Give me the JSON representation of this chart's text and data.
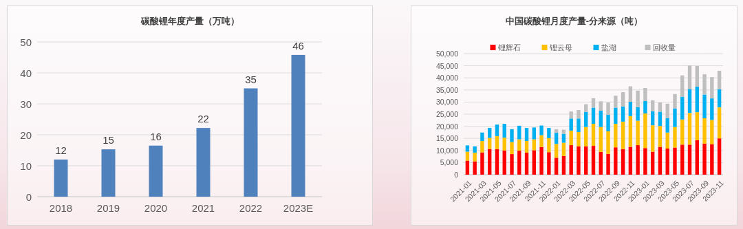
{
  "chart_data": [
    {
      "type": "bar",
      "title": "碳酸锂年度产量（万吨）",
      "categories": [
        "2018",
        "2019",
        "2020",
        "2021",
        "2022",
        "2023E"
      ],
      "values": [
        12,
        15.3,
        16.5,
        22.2,
        35,
        45.8
      ],
      "value_labels": [
        "12",
        "15",
        "16",
        "22",
        "35",
        "46"
      ],
      "color": "#4f81bd",
      "ylim": [
        0,
        50
      ],
      "yticks": [
        0,
        10,
        20,
        30,
        40,
        50
      ],
      "grid": "y"
    },
    {
      "type": "bar",
      "title": "中国碳酸锂月度产量-分来源（吨）",
      "stacked": true,
      "legend": "top",
      "grid": "y",
      "categories": [
        "2021-01",
        null,
        "2021-03",
        null,
        "2021-05",
        null,
        "2021-07",
        null,
        "2021-09",
        null,
        "2021-11",
        null,
        "2022-01",
        null,
        "2022-03",
        null,
        "2022-05",
        null,
        "2022-07",
        null,
        "2022-09",
        null,
        "2022-11",
        null,
        "2023-01",
        null,
        "2023-03",
        null,
        "2023-05",
        null,
        "2023-07",
        null,
        "2023-09",
        null,
        "2023-11"
      ],
      "ylim": [
        0,
        50000
      ],
      "yticks": [
        {
          "value": 0,
          "label": "0"
        },
        {
          "value": 5000,
          "label": "5,000"
        },
        {
          "value": 10000,
          "label": "10,000"
        },
        {
          "value": 15000,
          "label": "15,000"
        },
        {
          "value": 20000,
          "label": "20,000"
        },
        {
          "value": 25000,
          "label": "25,000"
        },
        {
          "value": 30000,
          "label": "30,000"
        },
        {
          "value": 35000,
          "label": "35,000"
        },
        {
          "value": 40000,
          "label": "40,000"
        },
        {
          "value": 45000,
          "label": "45,000"
        },
        {
          "value": 50000,
          "label": "50,000"
        }
      ],
      "series": [
        {
          "name": "锂辉石",
          "color": "#ff0000",
          "values": [
            5800,
            5500,
            9200,
            10600,
            10600,
            10000,
            8500,
            9900,
            9100,
            10100,
            11400,
            9300,
            7000,
            7700,
            12200,
            11700,
            11700,
            11900,
            9400,
            8600,
            11300,
            10600,
            11500,
            12200,
            11000,
            9500,
            11500,
            10800,
            11200,
            12400,
            12400,
            14200,
            12800,
            12600,
            15000
          ]
        },
        {
          "name": "锂云母",
          "color": "#ffc000",
          "values": [
            3700,
            3600,
            4700,
            4600,
            5300,
            5300,
            5000,
            4700,
            4800,
            4500,
            4900,
            5800,
            5700,
            5500,
            6000,
            5900,
            8000,
            9100,
            10300,
            9300,
            9700,
            11300,
            12700,
            10100,
            14300,
            10900,
            8600,
            6600,
            8500,
            10400,
            13100,
            11600,
            10500,
            10000,
            12800
          ]
        },
        {
          "name": "盐湖",
          "color": "#00b0f0",
          "values": [
            2600,
            2600,
            3500,
            4100,
            4800,
            5700,
            5300,
            5600,
            5400,
            4900,
            4000,
            4200,
            4600,
            3700,
            5000,
            5600,
            6200,
            6700,
            6700,
            6900,
            6700,
            6300,
            5900,
            5600,
            5100,
            5800,
            5900,
            6000,
            7700,
            9400,
            9900,
            10600,
            9800,
            8900,
            7500
          ]
        },
        {
          "name": "回收量",
          "color": "#bfbfbf",
          "values": [
            null,
            null,
            null,
            null,
            null,
            null,
            null,
            null,
            null,
            null,
            null,
            null,
            1500,
            1700,
            2900,
            3500,
            3200,
            3900,
            3900,
            5000,
            4900,
            5900,
            6400,
            6800,
            5400,
            4500,
            3800,
            5900,
            5900,
            8800,
            9700,
            8500,
            8400,
            8800,
            7600
          ]
        }
      ]
    }
  ]
}
